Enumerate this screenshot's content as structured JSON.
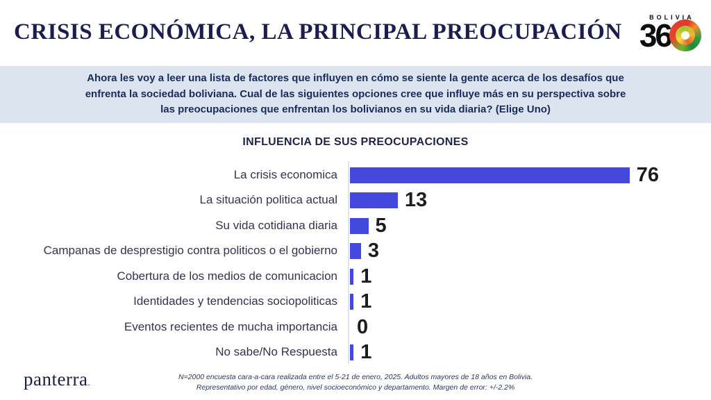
{
  "header": {
    "title": "CRISIS ECONÓMICA, LA PRINCIPAL PREOCUPACIÓN",
    "logo": {
      "brand_top": "BOLIVIA",
      "brand_number": "36",
      "globe_icon": "bolivia-360-globe-icon"
    }
  },
  "question": {
    "text": "Ahora les voy a leer una lista de factores que influyen en cómo se siente la gente acerca de los desafíos que enfrenta la sociedad boliviana. Cual de las siguientes opciones cree que influye más en su perspectiva sobre las preocupaciones que enfrentan los bolivianos en su vida diaria? (Elige Uno)"
  },
  "chart_data": {
    "type": "bar",
    "orientation": "horizontal",
    "title": "INFLUENCIA DE SUS PREOCUPACIONES",
    "categories": [
      "La crisis economica",
      "La situación politica actual",
      "Su vida cotidiana diaria",
      "Campanas de desprestigio contra politicos o el gobierno",
      "Cobertura de los medios de comunicacion",
      "Identidades y tendencias sociopoliticas",
      "Eventos recientes de mucha importancia",
      "No sabe/No Respuesta"
    ],
    "values": [
      76,
      13,
      5,
      3,
      1,
      1,
      0,
      1
    ],
    "value_labels": [
      "76",
      "13",
      "5",
      "3",
      "1",
      "1",
      "0",
      "1"
    ],
    "xlim": [
      0,
      100
    ],
    "grid": false,
    "legend": false,
    "bar_color": "#4448dd",
    "axis_line_color": "#d9e2ef",
    "value_label_color": "#1d1d1d"
  },
  "footer": {
    "brand": "panterra",
    "brand_mark": ".",
    "note_line1": "N=2000 encuesta cara-a-cara realizada entre el 5-21 de enero, 2025. Adultos mayores de 18 años en Bolivia.",
    "note_line2": "Representativo por edad, género, nivel socioeconómico y departamento. Margen de error: +/-2.2%"
  },
  "colors": {
    "accent_bar": "#4448dd",
    "banner_bg": "#dce4f0",
    "title_navy": "#1c1d4e",
    "label_slate": "#33334e"
  }
}
